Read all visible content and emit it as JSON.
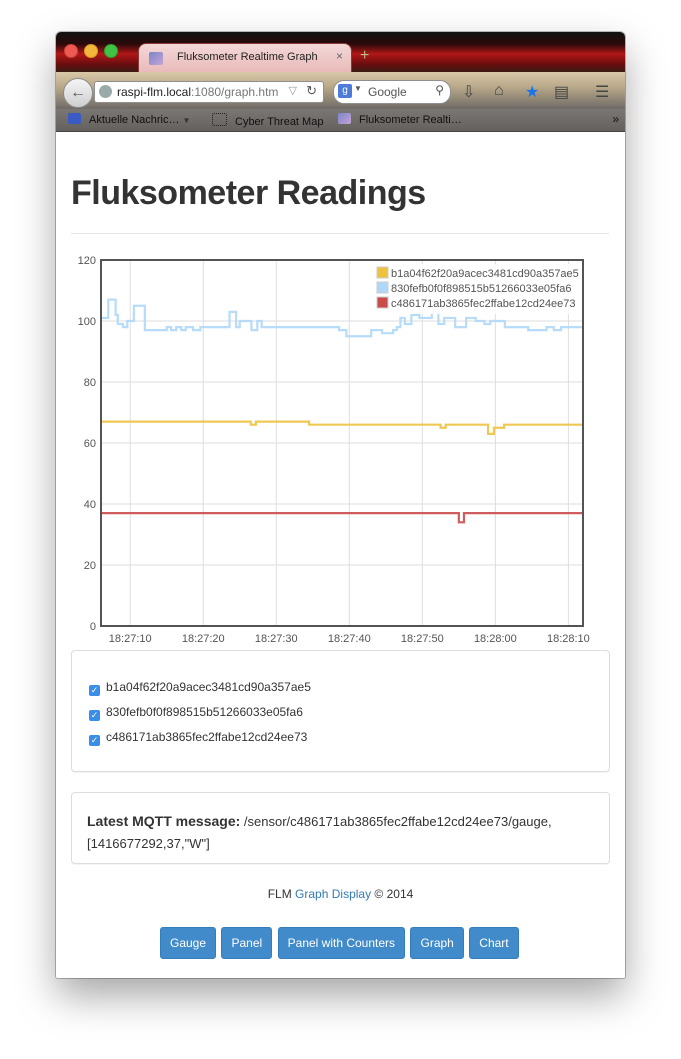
{
  "browser": {
    "tab_title": "Fluksometer Realtime Graph",
    "tab_close": "×",
    "new_tab": "+",
    "url_host": "raspi-flm.local",
    "url_rest": ":1080/graph.htm",
    "search_placeholder": "Google",
    "search_engine_letter": "g",
    "bookmarks": [
      "Aktuelle Nachric…",
      "Cyber Threat Map",
      "Fluksometer Realti…"
    ],
    "bookmarks_more": "»"
  },
  "page": {
    "title": "Fluksometer Readings"
  },
  "chart_data": {
    "type": "line",
    "ylim": [
      0,
      120
    ],
    "yticks": [
      "0",
      "20",
      "40",
      "60",
      "80",
      "100",
      "120"
    ],
    "xticks": [
      "18:27:10",
      "18:27:20",
      "18:27:30",
      "18:27:40",
      "18:27:50",
      "18:28:00",
      "18:28:10"
    ],
    "x_range": [
      "18:27:06",
      "18:28:12"
    ],
    "grid": true,
    "legend_position": "top-right",
    "step": true,
    "series": [
      {
        "name": "b1a04f62f20a9acec3481cd90a357ae5",
        "color": "#edc240",
        "x": [
          0,
          20.5,
          21.2,
          24.5,
          28.5,
          46.5,
          47.2,
          53,
          53.8,
          55.2,
          56.5,
          66
        ],
        "y": [
          67,
          66,
          67,
          67,
          66,
          65,
          66,
          63,
          65,
          66,
          66,
          66
        ]
      },
      {
        "name": "830fefb0f0f898515b51266033e05fa6",
        "color": "#afd8f8",
        "x": [
          0,
          1,
          2,
          2.3,
          3,
          3.6,
          4.5,
          6,
          9,
          9.6,
          10.3,
          11,
          11.6,
          12.6,
          13.6,
          14.3,
          16.6,
          17.6,
          18.5,
          19,
          20.6,
          21.4,
          22,
          24,
          32.6,
          33.6,
          37,
          38.5,
          40,
          40.5,
          41,
          41.6,
          42.5,
          43.6,
          45.3,
          46.2,
          47,
          48.5,
          50,
          51.3,
          52.5,
          53.3,
          55.3,
          55.6,
          58.5,
          61,
          62,
          63,
          64,
          66
        ],
        "y": [
          101,
          107,
          102,
          99,
          98,
          100,
          105,
          97,
          98,
          97,
          98,
          97,
          98,
          97,
          98,
          98,
          98,
          103,
          98,
          100,
          97,
          100,
          98,
          98,
          97,
          95,
          97,
          96,
          97,
          98,
          101,
          99,
          102,
          101,
          103,
          99,
          101,
          98,
          101,
          100,
          99,
          100,
          98,
          98,
          97,
          98,
          97,
          98,
          98,
          98
        ]
      },
      {
        "name": "c486171ab3865fec2ffabe12cd24ee73",
        "color": "#cb4b4b",
        "x": [
          0,
          49,
          49.7,
          66
        ],
        "y": [
          37,
          34,
          37,
          37
        ]
      }
    ]
  },
  "legend_panel": {
    "items": [
      {
        "label": "b1a04f62f20a9acec3481cd90a357ae5",
        "checked": true
      },
      {
        "label": "830fefb0f0f898515b51266033e05fa6",
        "checked": true
      },
      {
        "label": "c486171ab3865fec2ffabe12cd24ee73",
        "checked": true
      }
    ],
    "check_glyph": "✓"
  },
  "mqtt": {
    "label": "Latest MQTT message:",
    "value": "/sensor/c486171ab3865fec2ffabe12cd24ee73/gauge, [1416677292,37,\"W\"]"
  },
  "footer": {
    "prefix": "FLM",
    "link": "Graph Display",
    "suffix": "© 2014"
  },
  "buttons": [
    "Gauge",
    "Panel",
    "Panel with Counters",
    "Graph",
    "Chart"
  ]
}
